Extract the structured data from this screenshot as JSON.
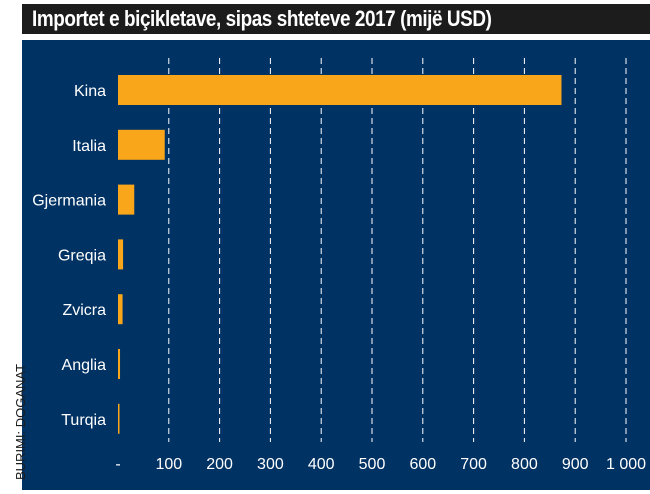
{
  "chart_data": {
    "type": "bar",
    "orientation": "horizontal",
    "title": "Importet e biçikletave, sipas shteteve 2017 (mijë USD)",
    "source": "BURIMI: DOGANAT",
    "categories": [
      "Kina",
      "Italia",
      "Gjermania",
      "Greqia",
      "Zvicra",
      "Anglia",
      "Turqia"
    ],
    "values": [
      873,
      92,
      32,
      10,
      9,
      4,
      2
    ],
    "xlim": [
      0,
      1000
    ],
    "x_ticks": [
      0,
      100,
      200,
      300,
      400,
      500,
      600,
      700,
      800,
      900,
      1000
    ],
    "x_tick_labels": [
      "-",
      "100",
      "200",
      "300",
      "400",
      "500",
      "600",
      "700",
      "800",
      "900",
      "1 000"
    ],
    "grid": "vertical-dashed",
    "colors": {
      "bar": "#f9a61a",
      "background": "#003263",
      "grid": "#ffffff",
      "text": "#ffffff",
      "title_bg": "#1c1c1c"
    }
  }
}
